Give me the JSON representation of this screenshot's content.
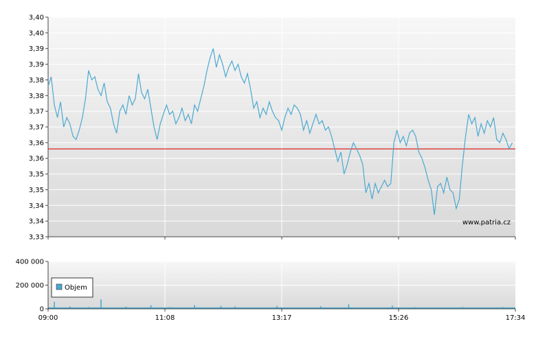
{
  "chart_data": [
    {
      "type": "line",
      "title": "",
      "xlabel": "",
      "ylabel": "",
      "x_ticks": [
        "09:00",
        "11:08",
        "13:17",
        "15:26",
        "17:34"
      ],
      "y_ticks": [
        "3,40",
        "3,40",
        "3,39",
        "3,39",
        "3,38",
        "3,38",
        "3,37",
        "3,37",
        "3,36",
        "3,36",
        "3,35",
        "3,35",
        "3,34",
        "3,34",
        "3,33"
      ],
      "ylim": [
        3.33,
        3.4
      ],
      "grid": true,
      "reference_line": {
        "value": 3.358,
        "color": "#dd2222"
      },
      "series": [
        {
          "color": "#4aa8d0",
          "points": [
            [
              0,
              3.378
            ],
            [
              2,
              3.381
            ],
            [
              4,
              3.372
            ],
            [
              6,
              3.368
            ],
            [
              8,
              3.373
            ],
            [
              10,
              3.365
            ],
            [
              12,
              3.368
            ],
            [
              14,
              3.366
            ],
            [
              16,
              3.362
            ],
            [
              18,
              3.361
            ],
            [
              20,
              3.364
            ],
            [
              22,
              3.368
            ],
            [
              24,
              3.374
            ],
            [
              26,
              3.383
            ],
            [
              28,
              3.38
            ],
            [
              30,
              3.381
            ],
            [
              32,
              3.377
            ],
            [
              34,
              3.375
            ],
            [
              36,
              3.379
            ],
            [
              38,
              3.373
            ],
            [
              40,
              3.371
            ],
            [
              42,
              3.366
            ],
            [
              44,
              3.363
            ],
            [
              46,
              3.37
            ],
            [
              48,
              3.372
            ],
            [
              50,
              3.369
            ],
            [
              52,
              3.375
            ],
            [
              54,
              3.372
            ],
            [
              56,
              3.374
            ],
            [
              58,
              3.382
            ],
            [
              60,
              3.376
            ],
            [
              62,
              3.374
            ],
            [
              64,
              3.377
            ],
            [
              66,
              3.371
            ],
            [
              68,
              3.365
            ],
            [
              70,
              3.361
            ],
            [
              72,
              3.366
            ],
            [
              74,
              3.369
            ],
            [
              76,
              3.372
            ],
            [
              78,
              3.369
            ],
            [
              80,
              3.37
            ],
            [
              82,
              3.366
            ],
            [
              84,
              3.368
            ],
            [
              86,
              3.371
            ],
            [
              88,
              3.367
            ],
            [
              90,
              3.369
            ],
            [
              92,
              3.366
            ],
            [
              94,
              3.372
            ],
            [
              96,
              3.37
            ],
            [
              98,
              3.374
            ],
            [
              100,
              3.378
            ],
            [
              102,
              3.383
            ],
            [
              104,
              3.387
            ],
            [
              106,
              3.39
            ],
            [
              108,
              3.384
            ],
            [
              110,
              3.388
            ],
            [
              112,
              3.385
            ],
            [
              114,
              3.381
            ],
            [
              116,
              3.384
            ],
            [
              118,
              3.386
            ],
            [
              120,
              3.383
            ],
            [
              122,
              3.385
            ],
            [
              124,
              3.381
            ],
            [
              126,
              3.379
            ],
            [
              128,
              3.382
            ],
            [
              130,
              3.377
            ],
            [
              132,
              3.371
            ],
            [
              134,
              3.373
            ],
            [
              136,
              3.368
            ],
            [
              138,
              3.371
            ],
            [
              140,
              3.369
            ],
            [
              142,
              3.373
            ],
            [
              144,
              3.37
            ],
            [
              146,
              3.368
            ],
            [
              148,
              3.367
            ],
            [
              150,
              3.364
            ],
            [
              152,
              3.368
            ],
            [
              154,
              3.371
            ],
            [
              156,
              3.369
            ],
            [
              158,
              3.372
            ],
            [
              160,
              3.371
            ],
            [
              162,
              3.369
            ],
            [
              164,
              3.364
            ],
            [
              166,
              3.367
            ],
            [
              168,
              3.363
            ],
            [
              170,
              3.366
            ],
            [
              172,
              3.369
            ],
            [
              174,
              3.366
            ],
            [
              176,
              3.367
            ],
            [
              178,
              3.364
            ],
            [
              180,
              3.365
            ],
            [
              182,
              3.362
            ],
            [
              184,
              3.358
            ],
            [
              186,
              3.354
            ],
            [
              188,
              3.357
            ],
            [
              190,
              3.35
            ],
            [
              192,
              3.353
            ],
            [
              194,
              3.357
            ],
            [
              196,
              3.36
            ],
            [
              198,
              3.358
            ],
            [
              200,
              3.356
            ],
            [
              202,
              3.353
            ],
            [
              204,
              3.344
            ],
            [
              206,
              3.347
            ],
            [
              208,
              3.342
            ],
            [
              210,
              3.347
            ],
            [
              212,
              3.344
            ],
            [
              214,
              3.346
            ],
            [
              216,
              3.348
            ],
            [
              218,
              3.346
            ],
            [
              220,
              3.347
            ],
            [
              222,
              3.36
            ],
            [
              224,
              3.364
            ],
            [
              226,
              3.36
            ],
            [
              228,
              3.362
            ],
            [
              230,
              3.359
            ],
            [
              232,
              3.363
            ],
            [
              234,
              3.364
            ],
            [
              236,
              3.362
            ],
            [
              238,
              3.357
            ],
            [
              240,
              3.355
            ],
            [
              242,
              3.352
            ],
            [
              244,
              3.348
            ],
            [
              246,
              3.345
            ],
            [
              248,
              3.337
            ],
            [
              250,
              3.346
            ],
            [
              252,
              3.347
            ],
            [
              254,
              3.344
            ],
            [
              256,
              3.349
            ],
            [
              258,
              3.345
            ],
            [
              260,
              3.344
            ],
            [
              262,
              3.339
            ],
            [
              264,
              3.342
            ],
            [
              266,
              3.353
            ],
            [
              268,
              3.362
            ],
            [
              270,
              3.369
            ],
            [
              272,
              3.366
            ],
            [
              274,
              3.368
            ],
            [
              276,
              3.362
            ],
            [
              278,
              3.366
            ],
            [
              280,
              3.363
            ],
            [
              282,
              3.367
            ],
            [
              284,
              3.365
            ],
            [
              286,
              3.368
            ],
            [
              288,
              3.361
            ],
            [
              290,
              3.36
            ],
            [
              292,
              3.363
            ],
            [
              294,
              3.361
            ],
            [
              296,
              3.358
            ],
            [
              298,
              3.36
            ]
          ]
        }
      ]
    },
    {
      "type": "bar",
      "title": "",
      "xlabel": "",
      "ylabel": "",
      "x_ticks": [
        "09:00",
        "11:08",
        "13:17",
        "15:26",
        "17:34"
      ],
      "y_ticks": [
        "400 000",
        "200 000",
        "0"
      ],
      "ylim": [
        0,
        400000
      ],
      "grid": true,
      "legend": {
        "label": "Objem",
        "placement": "bottom-left"
      },
      "color": "#4aa8d0",
      "values": [
        [
          4,
          60000
        ],
        [
          14,
          20000
        ],
        [
          26,
          15000
        ],
        [
          34,
          80000
        ],
        [
          50,
          18000
        ],
        [
          66,
          30000
        ],
        [
          78,
          15000
        ],
        [
          94,
          30000
        ],
        [
          111,
          24000
        ],
        [
          120,
          20000
        ],
        [
          136,
          12000
        ],
        [
          147,
          24000
        ],
        [
          162,
          10000
        ],
        [
          175,
          22000
        ],
        [
          193,
          38000
        ],
        [
          205,
          12000
        ],
        [
          221,
          26000
        ],
        [
          236,
          14000
        ],
        [
          251,
          12000
        ],
        [
          266,
          16000
        ],
        [
          280,
          10000
        ],
        [
          292,
          14000
        ]
      ]
    }
  ],
  "watermark": "www.patria.cz"
}
